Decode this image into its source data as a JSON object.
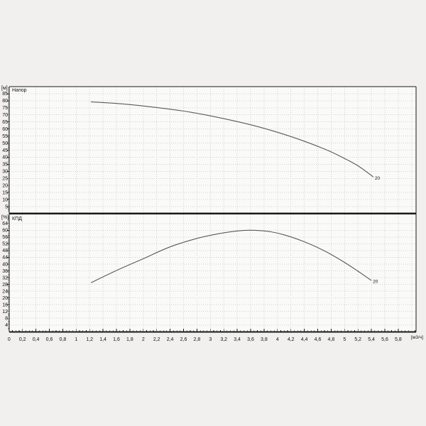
{
  "panel": {
    "background_color": "#f1f0ee",
    "plot_background_color": "#fafaf8",
    "grid_color": "#d2d1cf",
    "axis_color": "#1a1a1a",
    "curve_color": "#5a5a5a",
    "text_color": "#111111"
  },
  "labels": {
    "head_unit": "[м]",
    "head_title": "Напор",
    "eff_unit": "[%]",
    "eff_title": "КПД",
    "x_unit": "[м3/ч]"
  },
  "x_axis": {
    "min": 0,
    "max": 6.06,
    "tick_step": 0.2,
    "tick_labels": [
      "0",
      "0,2",
      "0,4",
      "0,6",
      "0,8",
      "1",
      "1,2",
      "1,4",
      "1,6",
      "1,8",
      "2",
      "2,2",
      "2,4",
      "2,6",
      "2,8",
      "3",
      "3,2",
      "3,4",
      "3,6",
      "3,8",
      "4",
      "4,2",
      "4,4",
      "4,6",
      "4,8",
      "5",
      "5,2",
      "5,4",
      "5,6",
      "5,8"
    ],
    "unit_label": "[м3/ч]"
  },
  "chart_data": [
    {
      "type": "line",
      "title": "Напор",
      "ylabel": "[м]",
      "xlabel": "[м3/ч]",
      "ylim": [
        0,
        90
      ],
      "xlim": [
        0,
        6.06
      ],
      "grid": true,
      "legend_position": "none",
      "y_ticks": [
        5,
        10,
        15,
        20,
        25,
        30,
        35,
        40,
        45,
        50,
        55,
        60,
        65,
        70,
        75,
        80,
        85
      ],
      "series": [
        {
          "name": "20",
          "points": [
            [
              1.22,
              79.2
            ],
            [
              1.7,
              77.7
            ],
            [
              2.2,
              75.2
            ],
            [
              2.7,
              71.9
            ],
            [
              3.2,
              67.3
            ],
            [
              3.7,
              61.7
            ],
            [
              4.2,
              54.6
            ],
            [
              4.7,
              45.8
            ],
            [
              5.0,
              39.1
            ],
            [
              5.2,
              33.9
            ],
            [
              5.43,
              26.0
            ]
          ]
        }
      ]
    },
    {
      "type": "line",
      "title": "КПД",
      "ylabel": "[%]",
      "xlabel": "[м3/ч]",
      "ylim": [
        0,
        70
      ],
      "xlim": [
        0,
        6.06
      ],
      "grid": true,
      "legend_position": "none",
      "y_ticks": [
        4,
        8,
        12,
        16,
        20,
        24,
        28,
        32,
        36,
        40,
        44,
        48,
        52,
        56,
        60,
        64
      ],
      "series": [
        {
          "name": "20",
          "points": [
            [
              1.22,
              29.0
            ],
            [
              1.6,
              36.2
            ],
            [
              2.0,
              43.2
            ],
            [
              2.4,
              50.2
            ],
            [
              2.8,
              55.2
            ],
            [
              3.1,
              57.8
            ],
            [
              3.4,
              59.6
            ],
            [
              3.6,
              60.0
            ],
            [
              3.85,
              59.4
            ],
            [
              4.1,
              57.3
            ],
            [
              4.4,
              53.2
            ],
            [
              4.7,
              47.8
            ],
            [
              5.0,
              41.0
            ],
            [
              5.2,
              35.8
            ],
            [
              5.4,
              30.3
            ]
          ]
        }
      ]
    }
  ]
}
